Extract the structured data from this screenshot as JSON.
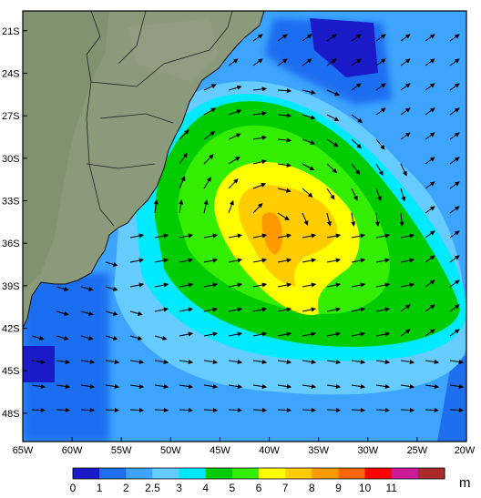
{
  "map": {
    "lat_ticks": [
      "21S",
      "24S",
      "27S",
      "30S",
      "33S",
      "36S",
      "39S",
      "42S",
      "45S",
      "48S"
    ],
    "lon_ticks": [
      "65W",
      "60W",
      "55W",
      "50W",
      "45W",
      "40W",
      "35W",
      "30W",
      "25W",
      "20W"
    ],
    "lat_range": [
      -50,
      -20
    ],
    "lon_range": [
      -65,
      -20
    ]
  },
  "colorbar": {
    "levels": [
      "0",
      "1",
      "2",
      "2.5",
      "3",
      "4",
      "5",
      "6",
      "7",
      "8",
      "9",
      "10",
      "11"
    ],
    "colors": [
      "#1a1ac8",
      "#1e6ef0",
      "#3da5ff",
      "#66ccff",
      "#00eaff",
      "#00cc00",
      "#33ee00",
      "#ffff00",
      "#ffcc00",
      "#ff9900",
      "#ff6600",
      "#ff0000",
      "#cc1a99",
      "#aa2a2a"
    ],
    "unit": "m"
  },
  "colors": {
    "land": "#8a9a7a",
    "frame": "#000000",
    "border": "#222222"
  }
}
